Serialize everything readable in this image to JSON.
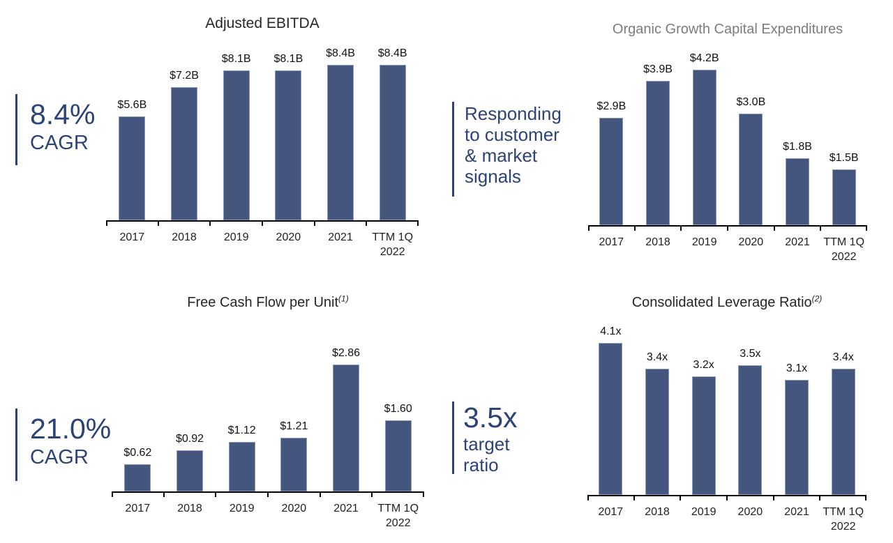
{
  "colors": {
    "bar_fill": "#44557E",
    "bar_border": "#8D99BE",
    "annotation_blue": "#2B4377",
    "title_gray": "#7C7C7C",
    "title_dark": "#262626",
    "axis_black": "#000000"
  },
  "chart_data": [
    {
      "id": "adjusted-ebitda",
      "type": "bar",
      "title": "Adjusted EBITDA",
      "title_superscript": "",
      "title_color": "#262626",
      "categories": [
        [
          "2017"
        ],
        [
          "2018"
        ],
        [
          "2019"
        ],
        [
          "2020"
        ],
        [
          "2021"
        ],
        [
          "TTM 1Q",
          "2022"
        ]
      ],
      "values": [
        5.6,
        7.2,
        8.1,
        8.1,
        8.4,
        8.4
      ],
      "labels": [
        "$5.6B",
        "$7.2B",
        "$8.1B",
        "$8.1B",
        "$8.4B",
        "$8.4B"
      ],
      "ylim": [
        0,
        9.4
      ],
      "grid": false,
      "legend": "none",
      "annotation": {
        "lines": [
          {
            "text": "8.4%",
            "size": "xl"
          },
          {
            "text": "CAGR",
            "size": "lg"
          }
        ]
      }
    },
    {
      "id": "organic-growth-capex",
      "type": "bar",
      "title": "Organic Growth Capital Expenditures",
      "title_superscript": "",
      "title_color": "#7C7C7C",
      "categories": [
        [
          "2017"
        ],
        [
          "2018"
        ],
        [
          "2019"
        ],
        [
          "2020"
        ],
        [
          "2021"
        ],
        [
          "TTM 1Q",
          "2022"
        ]
      ],
      "values": [
        2.9,
        3.9,
        4.2,
        3.0,
        1.8,
        1.5
      ],
      "labels": [
        "$2.9B",
        "$3.9B",
        "$4.2B",
        "$3.0B",
        "$1.8B",
        "$1.5B"
      ],
      "ylim": [
        0,
        4.7
      ],
      "grid": false,
      "legend": "none",
      "annotation": {
        "lines": [
          {
            "text": "Responding",
            "size": "md"
          },
          {
            "text": "to customer",
            "size": "md"
          },
          {
            "text": "& market",
            "size": "md"
          },
          {
            "text": "signals",
            "size": "md"
          }
        ]
      }
    },
    {
      "id": "free-cash-flow-per-unit",
      "type": "bar",
      "title": "Free Cash Flow per Unit",
      "title_superscript": "(1)",
      "title_color": "#262626",
      "categories": [
        [
          "2017"
        ],
        [
          "2018"
        ],
        [
          "2019"
        ],
        [
          "2020"
        ],
        [
          "2021"
        ],
        [
          "TTM 1Q",
          "2022"
        ]
      ],
      "values": [
        0.62,
        0.92,
        1.12,
        1.21,
        2.86,
        1.6
      ],
      "labels": [
        "$0.62",
        "$0.92",
        "$1.12",
        "$1.21",
        "$2.86",
        "$1.60"
      ],
      "ylim": [
        0,
        3.3
      ],
      "grid": false,
      "legend": "none",
      "annotation": {
        "lines": [
          {
            "text": "21.0%",
            "size": "xl"
          },
          {
            "text": "CAGR",
            "size": "lg"
          }
        ]
      }
    },
    {
      "id": "consolidated-leverage-ratio",
      "type": "bar",
      "title": "Consolidated Leverage Ratio",
      "title_superscript": "(2)",
      "title_color": "#262626",
      "categories": [
        [
          "2017"
        ],
        [
          "2018"
        ],
        [
          "2019"
        ],
        [
          "2020"
        ],
        [
          "2021"
        ],
        [
          "TTM 1Q",
          "2022"
        ]
      ],
      "values": [
        4.1,
        3.4,
        3.2,
        3.5,
        3.1,
        3.4
      ],
      "labels": [
        "4.1x",
        "3.4x",
        "3.2x",
        "3.5x",
        "3.1x",
        "3.4x"
      ],
      "ylim": [
        0,
        4.6
      ],
      "grid": false,
      "legend": "none",
      "annotation": {
        "lines": [
          {
            "text": "3.5x",
            "size": "xl"
          },
          {
            "text": "target",
            "size": "md"
          },
          {
            "text": "ratio",
            "size": "md"
          }
        ]
      }
    }
  ]
}
